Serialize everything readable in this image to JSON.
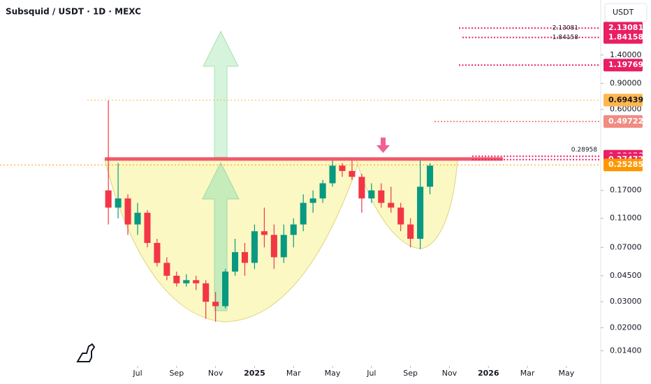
{
  "chart_data": {
    "type": "candlestick",
    "title": "Subsquid / USDT · 1D · MEXC",
    "currency": "USDT",
    "log_scale": true,
    "up_color": "#089981",
    "down_color": "#f23645",
    "ylim": [
      0.0118,
      3.3
    ],
    "yticks": [
      {
        "value": 0.014,
        "label": "0.01400"
      },
      {
        "value": 0.02,
        "label": "0.02000"
      },
      {
        "value": 0.03,
        "label": "0.03000"
      },
      {
        "value": 0.045,
        "label": "0.04500"
      },
      {
        "value": 0.07,
        "label": "0.07000"
      },
      {
        "value": 0.11,
        "label": "0.11000"
      },
      {
        "value": 0.17,
        "label": "0.17000"
      },
      {
        "value": 0.6,
        "label": "0.60000"
      },
      {
        "value": 0.9,
        "label": "0.90000"
      },
      {
        "value": 1.4,
        "label": "1.40000"
      }
    ],
    "xlim": [
      -1.06,
      29.76
    ],
    "xticks": [
      {
        "value": 6,
        "label": "Jul"
      },
      {
        "value": 8,
        "label": "Sep"
      },
      {
        "value": 10,
        "label": "Nov"
      },
      {
        "value": 12,
        "label": "2025"
      },
      {
        "value": 14,
        "label": "Mar"
      },
      {
        "value": 16,
        "label": "May"
      },
      {
        "value": 18,
        "label": "Jul"
      },
      {
        "value": 20,
        "label": "Sep"
      },
      {
        "value": 22,
        "label": "Nov"
      },
      {
        "value": 24,
        "label": "2026"
      },
      {
        "value": 26,
        "label": "Mar"
      },
      {
        "value": 28,
        "label": "May"
      }
    ],
    "x": [
      4.5,
      5,
      5.5,
      6,
      6.5,
      7,
      7.5,
      8,
      8.5,
      9,
      9.5,
      10,
      10.5,
      11,
      11.5,
      12,
      12.5,
      13,
      13.5,
      14,
      14.5,
      15,
      15.5,
      16,
      16.5,
      17,
      17.5,
      18,
      18.5,
      19,
      19.5,
      20,
      20.5,
      21
    ],
    "open": [
      0.17,
      0.13,
      0.15,
      0.1,
      0.12,
      0.075,
      0.055,
      0.045,
      0.04,
      0.042,
      0.04,
      0.03,
      0.028,
      0.048,
      0.065,
      0.055,
      0.09,
      0.085,
      0.06,
      0.085,
      0.1,
      0.14,
      0.15,
      0.19,
      0.25,
      0.23,
      0.21,
      0.15,
      0.17,
      0.14,
      0.13,
      0.1,
      0.08,
      0.18
    ],
    "high": [
      0.69,
      0.26,
      0.16,
      0.14,
      0.125,
      0.08,
      0.06,
      0.048,
      0.046,
      0.045,
      0.042,
      0.035,
      0.05,
      0.08,
      0.075,
      0.1,
      0.13,
      0.1,
      0.1,
      0.11,
      0.16,
      0.17,
      0.2,
      0.27,
      0.26,
      0.27,
      0.22,
      0.19,
      0.19,
      0.18,
      0.14,
      0.11,
      0.27,
      0.26
    ],
    "low": [
      0.1,
      0.11,
      0.085,
      0.085,
      0.07,
      0.052,
      0.042,
      0.038,
      0.038,
      0.036,
      0.023,
      0.022,
      0.027,
      0.045,
      0.045,
      0.05,
      0.07,
      0.05,
      0.055,
      0.07,
      0.09,
      0.12,
      0.14,
      0.18,
      0.21,
      0.2,
      0.12,
      0.14,
      0.13,
      0.12,
      0.09,
      0.07,
      0.068,
      0.16
    ],
    "close": [
      0.13,
      0.15,
      0.1,
      0.12,
      0.075,
      0.055,
      0.045,
      0.04,
      0.042,
      0.04,
      0.03,
      0.028,
      0.048,
      0.065,
      0.055,
      0.09,
      0.085,
      0.06,
      0.085,
      0.1,
      0.14,
      0.15,
      0.19,
      0.25,
      0.23,
      0.21,
      0.15,
      0.17,
      0.14,
      0.13,
      0.1,
      0.08,
      0.18,
      0.25
    ],
    "levels": [
      {
        "value": 2.13081,
        "color": "#e91e63"
      },
      {
        "value": 1.84158,
        "color": "#e91e63"
      },
      {
        "value": 1.19769,
        "color": "#e91e63"
      },
      {
        "value": 0.69439,
        "color": "#ffb74d"
      },
      {
        "value": 0.49722,
        "color": "#f28b82"
      },
      {
        "value": 0.28958,
        "color": "#e91e63"
      },
      {
        "value": 0.27472,
        "color": "#e91e63"
      },
      {
        "value": 0.25285,
        "color": "#ff9800"
      }
    ]
  }
}
